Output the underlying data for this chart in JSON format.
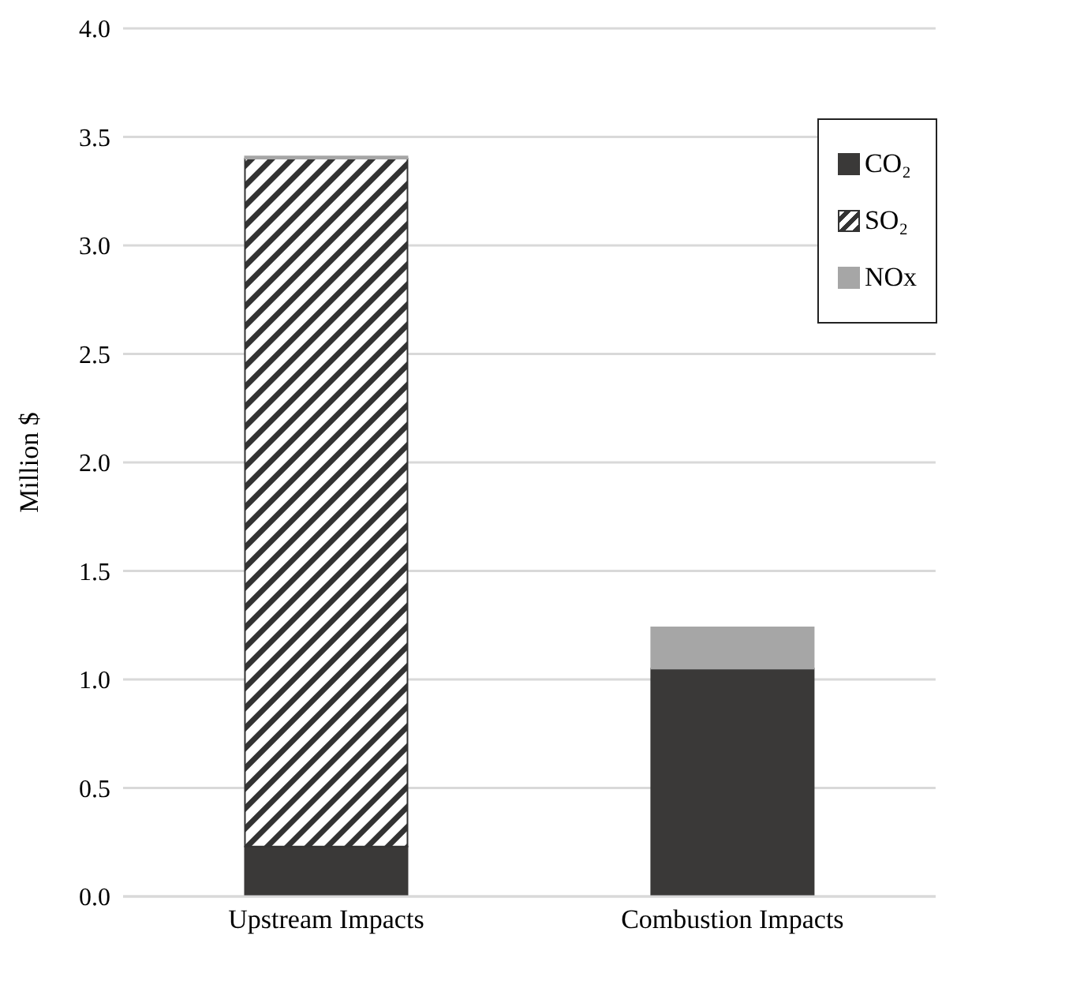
{
  "chart_data": {
    "type": "bar",
    "ylabel": "Million $",
    "categories": [
      "Upstream Impacts",
      "Combustion Impacts"
    ],
    "stacked": true,
    "series": [
      {
        "name": "CO₂",
        "color": "#3a3938",
        "values": [
          0.23,
          1.05
        ]
      },
      {
        "name": "SO₂",
        "color": "#333333",
        "values": [
          3.17,
          null
        ]
      },
      {
        "name": "NOx",
        "color": "#a6a6a6",
        "values": [
          0.01,
          0.19
        ]
      }
    ],
    "ylim": [
      0,
      4
    ],
    "yticks": [
      {
        "value": 0,
        "label": "0.0"
      },
      {
        "value": 0.5,
        "label": "0.5"
      },
      {
        "value": 1,
        "label": "1.0"
      },
      {
        "value": 1.5,
        "label": "1.5"
      },
      {
        "value": 2,
        "label": "2.0"
      },
      {
        "value": 2.5,
        "label": "2.5"
      },
      {
        "value": 3,
        "label": "3.0"
      },
      {
        "value": 3.5,
        "label": "3.5"
      },
      {
        "value": 4,
        "label": "4.0"
      }
    ],
    "grid": "y",
    "legend": "top right"
  }
}
